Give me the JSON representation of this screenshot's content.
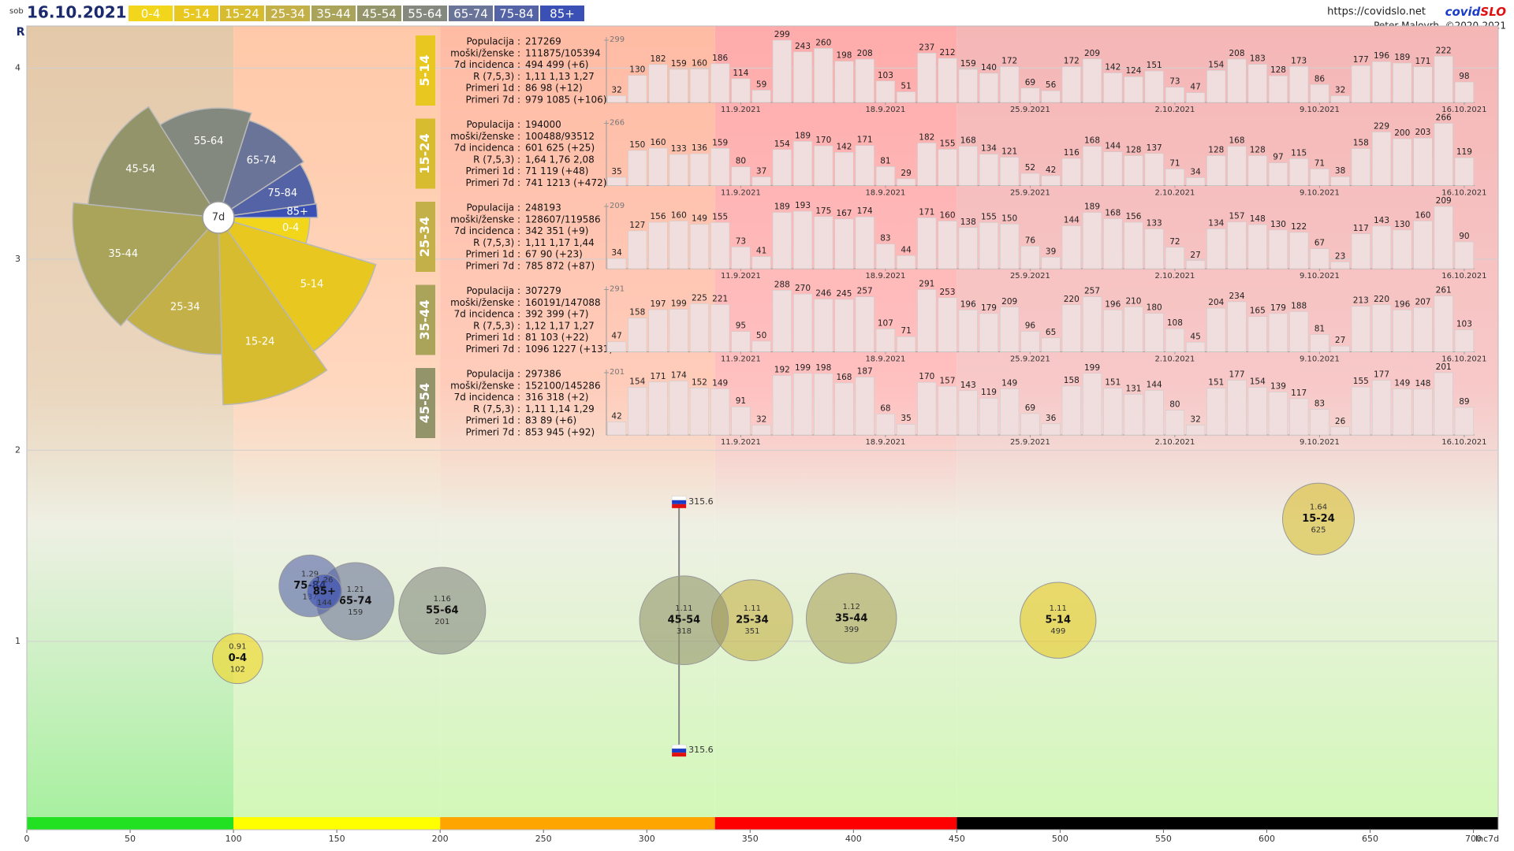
{
  "header": {
    "day": "sob",
    "date": "16.10.2021",
    "url": "https://covidslo.net",
    "brand": [
      "covid",
      "SLO"
    ],
    "credit": "Peter Malovrh, ©2020-2021"
  },
  "chart_data": [
    {
      "type": "bubble",
      "y_label": "R",
      "x_label": "Inc7d",
      "xlim": [
        0,
        712
      ],
      "ylim": [
        0.08,
        4.22
      ],
      "xticks": [
        0,
        50,
        100,
        150,
        200,
        250,
        300,
        350,
        400,
        450,
        500,
        550,
        600,
        650,
        700
      ],
      "yticks": [
        1,
        2,
        3,
        4
      ],
      "grid": true,
      "zones": [
        {
          "to": 100,
          "color": "#22e022",
          "bg": "#e4c9a9"
        },
        {
          "to": 200,
          "color": "#ffff00",
          "bg": "#ffc9a9"
        },
        {
          "to": 333,
          "color": "#ffa500",
          "bg": "#ffbba4"
        },
        {
          "to": 450,
          "color": "#ff0000",
          "bg": "#ffabab"
        },
        {
          "color": "#000000",
          "bg": "#f5b6b6"
        }
      ],
      "national": {
        "x": 315.6,
        "y": [
          0.43,
          1.73
        ]
      },
      "pie_center": "7d",
      "series": [
        {
          "name": "0-4",
          "color": "#f2d61c",
          "x": 102,
          "y": 0.91,
          "size": 95000
        },
        {
          "name": "5-14",
          "color": "#e8c820",
          "x": 499,
          "y": 1.11,
          "size": 217269
        },
        {
          "name": "15-24",
          "color": "#d8bc30",
          "x": 625,
          "y": 1.64,
          "size": 194000
        },
        {
          "name": "25-34",
          "color": "#c4b048",
          "x": 351,
          "y": 1.11,
          "size": 248193
        },
        {
          "name": "35-44",
          "color": "#aaa35a",
          "x": 399,
          "y": 1.12,
          "size": 307279
        },
        {
          "name": "45-54",
          "color": "#939469",
          "x": 318,
          "y": 1.11,
          "size": 297386
        },
        {
          "name": "55-64",
          "color": "#83897f",
          "x": 201,
          "y": 1.16,
          "size": 284000
        },
        {
          "name": "65-74",
          "color": "#6a7398",
          "x": 159,
          "y": 1.21,
          "size": 225000
        },
        {
          "name": "75-84",
          "color": "#5462a6",
          "x": 137,
          "y": 1.29,
          "size": 144000
        },
        {
          "name": "85+",
          "color": "#3a50b4",
          "x": 144,
          "y": 1.26,
          "size": 45500
        }
      ]
    },
    {
      "type": "bar",
      "title": "5-14",
      "tag_color": "#e8c820",
      "color": "#f0dede",
      "info": [
        [
          "Populacija :",
          "217269"
        ],
        [
          "moški/ženske :",
          "111875/105394"
        ],
        [
          "7d incidenca :",
          "494 499 (+6)"
        ],
        [
          "R (7,5,3) :",
          "1,11 1,13 1,27"
        ],
        [
          "Primeri 1d :",
          "86 98 (+12)"
        ],
        [
          "Primeri 7d :",
          "979 1085 (+106)"
        ]
      ],
      "categories": [
        null,
        null,
        null,
        null,
        null,
        null,
        "11.9.2021",
        null,
        null,
        null,
        null,
        null,
        null,
        "18.9.2021",
        null,
        null,
        null,
        null,
        null,
        null,
        "25.9.2021",
        null,
        null,
        null,
        null,
        null,
        null,
        "2.10.2021",
        null,
        null,
        null,
        null,
        null,
        null,
        "9.10.2021",
        null,
        null,
        null,
        null,
        null,
        null,
        "16.10.2021"
      ],
      "values": [
        32,
        130,
        182,
        159,
        160,
        186,
        114,
        59,
        299,
        243,
        260,
        198,
        208,
        103,
        51,
        237,
        212,
        159,
        140,
        172,
        69,
        56,
        172,
        209,
        142,
        124,
        151,
        73,
        47,
        154,
        208,
        183,
        128,
        173,
        86,
        32,
        177,
        196,
        189,
        171,
        222,
        98
      ],
      "ylim": [
        0,
        299
      ],
      "yticks": [
        299
      ]
    },
    {
      "type": "bar",
      "title": "15-24",
      "tag_color": "#d8bc30",
      "color": "#f0dede",
      "info": [
        [
          "Populacija :",
          "194000"
        ],
        [
          "moški/ženske :",
          "100488/93512"
        ],
        [
          "7d incidenca :",
          "601 625 (+25)"
        ],
        [
          "R (7,5,3) :",
          "1,64 1,76 2,08"
        ],
        [
          "Primeri 1d :",
          "71 119 (+48)"
        ],
        [
          "Primeri 7d :",
          "741 1213 (+472)"
        ]
      ],
      "categories": [
        null,
        null,
        null,
        null,
        null,
        null,
        "11.9.2021",
        null,
        null,
        null,
        null,
        null,
        null,
        "18.9.2021",
        null,
        null,
        null,
        null,
        null,
        null,
        "25.9.2021",
        null,
        null,
        null,
        null,
        null,
        null,
        "2.10.2021",
        null,
        null,
        null,
        null,
        null,
        null,
        "9.10.2021",
        null,
        null,
        null,
        null,
        null,
        null,
        "16.10.2021"
      ],
      "values": [
        35,
        150,
        160,
        133,
        136,
        159,
        80,
        37,
        154,
        189,
        170,
        142,
        171,
        81,
        29,
        182,
        155,
        168,
        134,
        121,
        52,
        42,
        116,
        168,
        144,
        128,
        137,
        71,
        34,
        128,
        168,
        128,
        97,
        115,
        71,
        38,
        158,
        229,
        200,
        203,
        266,
        119
      ],
      "ylim": [
        0,
        266
      ],
      "yticks": [
        266
      ]
    },
    {
      "type": "bar",
      "title": "25-34",
      "tag_color": "#c4b048",
      "color": "#f0dede",
      "info": [
        [
          "Populacija :",
          "248193"
        ],
        [
          "moški/ženske :",
          "128607/119586"
        ],
        [
          "7d incidenca :",
          "342 351 (+9)"
        ],
        [
          "R (7,5,3) :",
          "1,11 1,17 1,44"
        ],
        [
          "Primeri 1d :",
          "67 90 (+23)"
        ],
        [
          "Primeri 7d :",
          "785 872 (+87)"
        ]
      ],
      "categories": [
        null,
        null,
        null,
        null,
        null,
        null,
        "11.9.2021",
        null,
        null,
        null,
        null,
        null,
        null,
        "18.9.2021",
        null,
        null,
        null,
        null,
        null,
        null,
        "25.9.2021",
        null,
        null,
        null,
        null,
        null,
        null,
        "2.10.2021",
        null,
        null,
        null,
        null,
        null,
        null,
        "9.10.2021",
        null,
        null,
        null,
        null,
        null,
        null,
        "16.10.2021"
      ],
      "values": [
        34,
        127,
        156,
        160,
        149,
        155,
        73,
        41,
        189,
        193,
        175,
        167,
        174,
        83,
        44,
        171,
        160,
        138,
        155,
        150,
        76,
        39,
        144,
        189,
        168,
        156,
        133,
        72,
        27,
        134,
        157,
        148,
        130,
        122,
        67,
        23,
        117,
        143,
        130,
        160,
        209,
        90
      ],
      "ylim": [
        0,
        209
      ],
      "yticks": [
        209
      ]
    },
    {
      "type": "bar",
      "title": "35-44",
      "tag_color": "#aaa35a",
      "color": "#f0dede",
      "info": [
        [
          "Populacija :",
          "307279"
        ],
        [
          "moški/ženske :",
          "160191/147088"
        ],
        [
          "7d incidenca :",
          "392 399 (+7)"
        ],
        [
          "R (7,5,3) :",
          "1,12 1,17 1,27"
        ],
        [
          "Primeri 1d :",
          "81 103 (+22)"
        ],
        [
          "Primeri 7d :",
          "1096 1227 (+131)"
        ]
      ],
      "categories": [
        null,
        null,
        null,
        null,
        null,
        null,
        "11.9.2021",
        null,
        null,
        null,
        null,
        null,
        null,
        "18.9.2021",
        null,
        null,
        null,
        null,
        null,
        null,
        "25.9.2021",
        null,
        null,
        null,
        null,
        null,
        null,
        "2.10.2021",
        null,
        null,
        null,
        null,
        null,
        null,
        "9.10.2021",
        null,
        null,
        null,
        null,
        null,
        null,
        "16.10.2021"
      ],
      "values": [
        47,
        158,
        197,
        199,
        225,
        221,
        95,
        50,
        288,
        270,
        246,
        245,
        257,
        107,
        71,
        291,
        253,
        196,
        179,
        209,
        96,
        65,
        220,
        257,
        196,
        210,
        180,
        108,
        45,
        204,
        234,
        165,
        179,
        188,
        81,
        27,
        213,
        220,
        196,
        207,
        261,
        103
      ],
      "ylim": [
        0,
        291
      ],
      "yticks": [
        291
      ]
    },
    {
      "type": "bar",
      "title": "45-54",
      "tag_color": "#939469",
      "color": "#f0dede",
      "info": [
        [
          "Populacija :",
          "297386"
        ],
        [
          "moški/ženske :",
          "152100/145286"
        ],
        [
          "7d incidenca :",
          "316 318 (+2)"
        ],
        [
          "R (7,5,3) :",
          "1,11 1,14 1,29"
        ],
        [
          "Primeri 1d :",
          "83 89 (+6)"
        ],
        [
          "Primeri 7d :",
          "853 945 (+92)"
        ]
      ],
      "categories": [
        null,
        null,
        null,
        null,
        null,
        null,
        "11.9.2021",
        null,
        null,
        null,
        null,
        null,
        null,
        "18.9.2021",
        null,
        null,
        null,
        null,
        null,
        null,
        "25.9.2021",
        null,
        null,
        null,
        null,
        null,
        null,
        "2.10.2021",
        null,
        null,
        null,
        null,
        null,
        null,
        "9.10.2021",
        null,
        null,
        null,
        null,
        null,
        null,
        "16.10.2021"
      ],
      "values": [
        42,
        154,
        171,
        174,
        152,
        149,
        91,
        32,
        192,
        199,
        198,
        168,
        187,
        68,
        35,
        170,
        157,
        143,
        119,
        149,
        69,
        36,
        158,
        199,
        151,
        131,
        144,
        80,
        32,
        151,
        177,
        154,
        139,
        117,
        83,
        26,
        155,
        177,
        149,
        148,
        201,
        89
      ],
      "ylim": [
        0,
        201
      ],
      "yticks": [
        201
      ]
    }
  ]
}
